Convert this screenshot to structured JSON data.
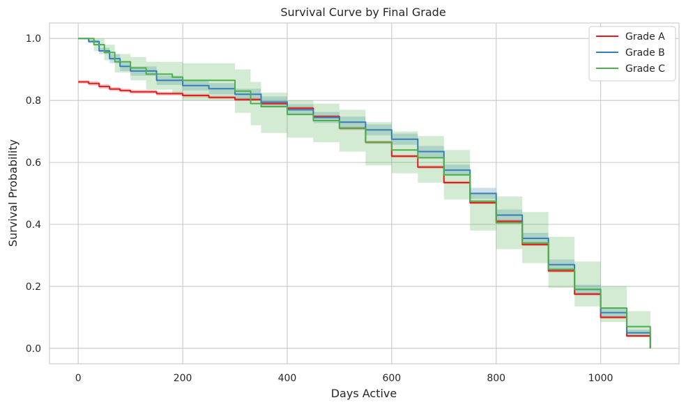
{
  "chart_data": {
    "type": "line",
    "title": "Survival Curve by Final Grade",
    "xlabel": "Days Active",
    "ylabel": "Survival Probability",
    "xlim": [
      -55,
      1150
    ],
    "ylim": [
      -0.05,
      1.05
    ],
    "xticks": [
      0,
      200,
      400,
      600,
      800,
      1000
    ],
    "yticks": [
      0.0,
      0.2,
      0.4,
      0.6,
      0.8,
      1.0
    ],
    "xtick_labels": [
      "0",
      "200",
      "400",
      "600",
      "800",
      "1000"
    ],
    "ytick_labels": [
      "0.0",
      "0.2",
      "0.4",
      "0.6",
      "0.8",
      "1.0"
    ],
    "grid": true,
    "legend_position": "top-right",
    "series": [
      {
        "name": "Grade A",
        "color": "#e41a1c",
        "x": [
          0,
          10,
          20,
          40,
          60,
          80,
          100,
          150,
          200,
          250,
          300,
          350,
          400,
          450,
          500,
          550,
          600,
          650,
          700,
          750,
          800,
          850,
          900,
          950,
          1000,
          1050,
          1095
        ],
        "y": [
          0.86,
          0.86,
          0.855,
          0.845,
          0.837,
          0.832,
          0.828,
          0.822,
          0.816,
          0.81,
          0.803,
          0.79,
          0.775,
          0.748,
          0.71,
          0.665,
          0.62,
          0.585,
          0.535,
          0.47,
          0.41,
          0.335,
          0.25,
          0.175,
          0.1,
          0.04,
          0.0
        ],
        "ci_lower": [
          0.855,
          0.855,
          0.848,
          0.838,
          0.831,
          0.826,
          0.822,
          0.816,
          0.81,
          0.805,
          0.798,
          0.785,
          0.77,
          0.743,
          0.705,
          0.66,
          0.615,
          0.58,
          0.53,
          0.465,
          0.405,
          0.33,
          0.245,
          0.17,
          0.096,
          0.037,
          0.0
        ],
        "ci_upper": [
          0.865,
          0.865,
          0.862,
          0.852,
          0.843,
          0.838,
          0.834,
          0.828,
          0.822,
          0.815,
          0.808,
          0.795,
          0.78,
          0.753,
          0.715,
          0.67,
          0.625,
          0.59,
          0.54,
          0.475,
          0.415,
          0.34,
          0.255,
          0.18,
          0.105,
          0.043,
          0.0
        ]
      },
      {
        "name": "Grade B",
        "color": "#377eb8",
        "x": [
          0,
          20,
          40,
          60,
          80,
          100,
          150,
          200,
          250,
          300,
          350,
          400,
          450,
          500,
          550,
          600,
          650,
          700,
          750,
          800,
          850,
          900,
          950,
          1000,
          1050,
          1095
        ],
        "y": [
          1.0,
          0.99,
          0.96,
          0.935,
          0.91,
          0.895,
          0.865,
          0.848,
          0.838,
          0.82,
          0.795,
          0.77,
          0.745,
          0.73,
          0.705,
          0.675,
          0.635,
          0.575,
          0.5,
          0.43,
          0.355,
          0.27,
          0.19,
          0.115,
          0.05,
          0.0
        ],
        "ci_lower": [
          1.0,
          0.985,
          0.95,
          0.92,
          0.895,
          0.88,
          0.85,
          0.832,
          0.82,
          0.802,
          0.777,
          0.752,
          0.727,
          0.712,
          0.687,
          0.657,
          0.617,
          0.557,
          0.482,
          0.412,
          0.337,
          0.253,
          0.175,
          0.102,
          0.04,
          0.0
        ],
        "ci_upper": [
          1.0,
          0.995,
          0.97,
          0.95,
          0.925,
          0.91,
          0.88,
          0.864,
          0.856,
          0.838,
          0.813,
          0.788,
          0.763,
          0.748,
          0.723,
          0.693,
          0.653,
          0.593,
          0.518,
          0.448,
          0.373,
          0.287,
          0.205,
          0.128,
          0.06,
          0.0
        ]
      },
      {
        "name": "Grade C",
        "color": "#4daf4a",
        "x": [
          0,
          20,
          30,
          50,
          70,
          100,
          130,
          180,
          200,
          250,
          300,
          330,
          350,
          400,
          450,
          500,
          550,
          600,
          650,
          700,
          750,
          800,
          850,
          900,
          950,
          1000,
          1050,
          1095
        ],
        "y": [
          1.0,
          1.0,
          0.98,
          0.955,
          0.925,
          0.905,
          0.885,
          0.875,
          0.865,
          0.865,
          0.83,
          0.79,
          0.78,
          0.755,
          0.735,
          0.71,
          0.665,
          0.64,
          0.615,
          0.56,
          0.475,
          0.405,
          0.34,
          0.255,
          0.19,
          0.13,
          0.07,
          0.0
        ],
        "ci_lower": [
          1.0,
          0.99,
          0.96,
          0.93,
          0.89,
          0.865,
          0.835,
          0.82,
          0.8,
          0.8,
          0.76,
          0.72,
          0.695,
          0.68,
          0.665,
          0.635,
          0.59,
          0.565,
          0.535,
          0.48,
          0.38,
          0.32,
          0.275,
          0.195,
          0.135,
          0.085,
          0.035,
          0.0
        ],
        "ci_upper": [
          1.0,
          1.0,
          1.0,
          0.98,
          0.95,
          0.94,
          0.925,
          0.925,
          0.92,
          0.92,
          0.9,
          0.86,
          0.825,
          0.8,
          0.79,
          0.77,
          0.73,
          0.7,
          0.685,
          0.64,
          0.5,
          0.49,
          0.44,
          0.36,
          0.28,
          0.2,
          0.12,
          0.0
        ]
      }
    ]
  }
}
